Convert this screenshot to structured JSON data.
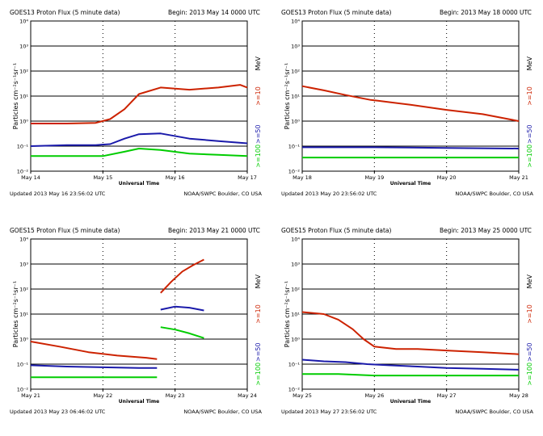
{
  "chart_data": [
    {
      "type": "line",
      "title": "GOES13 Proton Flux (5 minute data)",
      "begin": "Begin: 2013 May 14 0000 UTC",
      "xlabel": "Universal Time",
      "ylabel": "Particles cm⁻²s⁻¹sr⁻¹",
      "y_unit": "MeV",
      "y_scale": "log",
      "ylim": [
        0.01,
        10000
      ],
      "ytick_labels": [
        "10⁴",
        "10³",
        "10²",
        "10¹",
        "10⁰",
        "10⁻¹",
        "10⁻²"
      ],
      "xlim": [
        0,
        3
      ],
      "x_tick_labels": [
        "May 14",
        "May 15",
        "May 16",
        "May 17"
      ],
      "updated": "Updated 2013 May 16 23:56:02 UTC",
      "credit": "NOAA/SWPC Boulder, CO USA",
      "thresholds": [
        10,
        1
      ],
      "series": [
        {
          "name": ">=10",
          "color": "#cc2200",
          "x": [
            0,
            0.5,
            0.9,
            1.1,
            1.3,
            1.5,
            1.8,
            2.2,
            2.6,
            2.9,
            3.0
          ],
          "values": [
            0.8,
            0.8,
            0.85,
            1.2,
            3,
            12,
            22,
            18,
            22,
            28,
            22
          ]
        },
        {
          "name": ">=50",
          "color": "#1a1aaa",
          "x": [
            0,
            0.5,
            0.9,
            1.1,
            1.3,
            1.5,
            1.8,
            2.2,
            2.6,
            3.0
          ],
          "values": [
            0.1,
            0.11,
            0.11,
            0.12,
            0.2,
            0.3,
            0.32,
            0.2,
            0.16,
            0.13
          ]
        },
        {
          "name": ">=100",
          "color": "#00cc00",
          "x": [
            0,
            0.5,
            1.0,
            1.3,
            1.5,
            1.8,
            2.2,
            2.6,
            3.0
          ],
          "values": [
            0.04,
            0.04,
            0.04,
            0.06,
            0.08,
            0.07,
            0.05,
            0.045,
            0.04
          ]
        }
      ]
    },
    {
      "type": "line",
      "title": "GOES13 Proton Flux (5 minute data)",
      "begin": "Begin: 2013 May 18 0000 UTC",
      "xlabel": "Universal Time",
      "ylabel": "Particles cm⁻²s⁻¹sr⁻¹",
      "y_unit": "MeV",
      "y_scale": "log",
      "ylim": [
        0.01,
        10000
      ],
      "ytick_labels": [
        "10⁴",
        "10³",
        "10²",
        "10¹",
        "10⁰",
        "10⁻¹",
        "10⁻²"
      ],
      "xlim": [
        0,
        3
      ],
      "x_tick_labels": [
        "May 18",
        "May 19",
        "May 20",
        "May 21"
      ],
      "updated": "Updated 2013 May 20 23:56:02 UTC",
      "credit": "NOAA/SWPC Boulder, CO USA",
      "thresholds": [
        10,
        0.1
      ],
      "series": [
        {
          "name": ">=10",
          "color": "#cc2200",
          "x": [
            0,
            0.3,
            0.6,
            0.95,
            1.05,
            1.5,
            2.0,
            2.5,
            2.8,
            3.0
          ],
          "values": [
            25,
            17,
            11,
            7,
            6.5,
            4.5,
            2.8,
            1.9,
            1.3,
            1.0
          ]
        },
        {
          "name": ">=50",
          "color": "#1a1aaa",
          "x": [
            0,
            1.0,
            2.0,
            3.0
          ],
          "values": [
            0.09,
            0.09,
            0.085,
            0.08
          ]
        },
        {
          "name": ">=100",
          "color": "#00cc00",
          "x": [
            0,
            1.0,
            2.0,
            3.0
          ],
          "values": [
            0.035,
            0.035,
            0.035,
            0.035
          ]
        }
      ]
    },
    {
      "type": "line",
      "title": "GOES15 Proton Flux (5 minute data)",
      "begin": "Begin: 2013 May 21 0000 UTC",
      "xlabel": "Universal Time",
      "ylabel": "Particles cm⁻²s⁻¹sr⁻¹",
      "y_unit": "MeV",
      "y_scale": "log",
      "ylim": [
        0.01,
        10000
      ],
      "ytick_labels": [
        "10⁴",
        "10³",
        "10²",
        "10¹",
        "10⁰",
        "10⁻¹",
        "10⁻²"
      ],
      "xlim": [
        0,
        3
      ],
      "x_tick_labels": [
        "May 21",
        "May 22",
        "May 23",
        "May 24"
      ],
      "updated": "Updated 2013 May 23 06:46:02 UTC",
      "credit": "NOAA/SWPC Boulder, CO USA",
      "thresholds": [
        10
      ],
      "series": [
        {
          "name": ">=10",
          "color": "#cc2200",
          "x": [
            0,
            0.4,
            0.8,
            1.2,
            1.6,
            1.75
          ],
          "values": [
            0.8,
            0.5,
            0.3,
            0.22,
            0.18,
            0.16
          ]
        },
        {
          "name": ">=10",
          "color": "#cc2200",
          "x": [
            1.8,
            1.95,
            2.1,
            2.25,
            2.4
          ],
          "values": [
            70,
            200,
            500,
            900,
            1500
          ]
        },
        {
          "name": ">=50",
          "color": "#1a1aaa",
          "x": [
            0,
            0.5,
            1.0,
            1.5,
            1.75
          ],
          "values": [
            0.09,
            0.08,
            0.075,
            0.07,
            0.07
          ]
        },
        {
          "name": ">=50",
          "color": "#1a1aaa",
          "x": [
            1.8,
            2.0,
            2.2,
            2.4
          ],
          "values": [
            15,
            20,
            18,
            14
          ]
        },
        {
          "name": ">=100",
          "color": "#00cc00",
          "x": [
            0,
            0.5,
            1.0,
            1.5,
            1.75
          ],
          "values": [
            0.03,
            0.03,
            0.03,
            0.03,
            0.03
          ]
        },
        {
          "name": ">=100",
          "color": "#00cc00",
          "x": [
            1.8,
            2.0,
            2.2,
            2.4
          ],
          "values": [
            3,
            2.4,
            1.7,
            1.1
          ]
        }
      ]
    },
    {
      "type": "line",
      "title": "GOES15 Proton Flux (5 minute data)",
      "begin": "Begin: 2013 May 25 0000 UTC",
      "xlabel": "Universal Time",
      "ylabel": "Particles cm⁻²s⁻¹sr⁻¹",
      "y_unit": "MeV",
      "y_scale": "log",
      "ylim": [
        0.01,
        10000
      ],
      "ytick_labels": [
        "10⁴",
        "10³",
        "10²",
        "10¹",
        "10⁰",
        "10⁻¹",
        "10⁻²"
      ],
      "xlim": [
        0,
        3
      ],
      "x_tick_labels": [
        "May 25",
        "May 26",
        "May 27",
        "May 28"
      ],
      "updated": "Updated 2013 May 27 23:56:02 UTC",
      "credit": "NOAA/SWPC Boulder, CO USA",
      "thresholds": [
        10
      ],
      "series": [
        {
          "name": ">=10",
          "color": "#cc2200",
          "x": [
            0,
            0.3,
            0.5,
            0.7,
            0.85,
            1.0,
            1.3,
            1.6,
            2.0,
            2.5,
            3.0
          ],
          "values": [
            12,
            10,
            6,
            2.5,
            1,
            0.5,
            0.4,
            0.4,
            0.35,
            0.3,
            0.25
          ]
        },
        {
          "name": ">=50",
          "color": "#1a1aaa",
          "x": [
            0,
            0.3,
            0.6,
            0.9,
            1.2,
            1.6,
            2.0,
            2.5,
            3.0
          ],
          "values": [
            0.15,
            0.13,
            0.12,
            0.1,
            0.09,
            0.08,
            0.07,
            0.065,
            0.06
          ]
        },
        {
          "name": ">=100",
          "color": "#00cc00",
          "x": [
            0,
            0.5,
            1.0,
            1.5,
            2.0,
            2.5,
            3.0
          ],
          "values": [
            0.04,
            0.04,
            0.035,
            0.035,
            0.035,
            0.035,
            0.035
          ]
        }
      ]
    }
  ]
}
